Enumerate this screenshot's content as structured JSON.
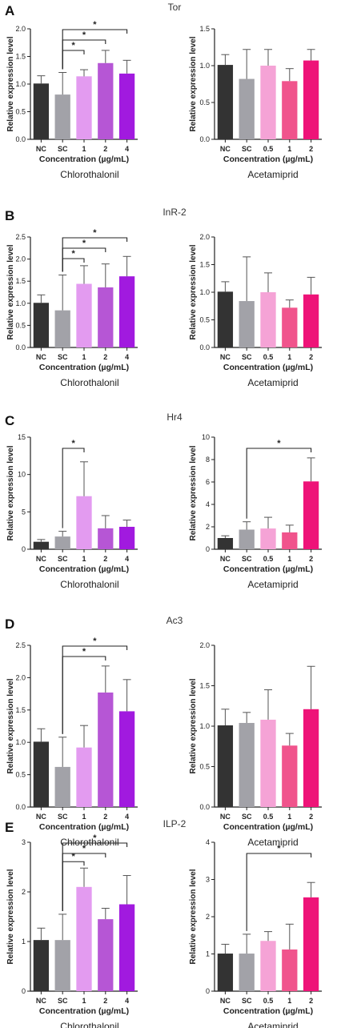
{
  "figure": {
    "panels": [
      {
        "letter": "A",
        "gene": "Tor",
        "charts": [
          {
            "type": "bar",
            "treatment": "Chlorothalonil",
            "xlabel": "Concentration (µg/mL)",
            "ylabel": "Relative expression level",
            "ylim": [
              0,
              2.0
            ],
            "yticks": [
              "0.0",
              "0.5",
              "1.0",
              "1.5",
              "2.0"
            ],
            "categories": [
              "NC",
              "SC",
              "1",
              "2",
              "4"
            ],
            "values": [
              1.01,
              0.81,
              1.14,
              1.38,
              1.19
            ],
            "errors": [
              0.14,
              0.4,
              0.12,
              0.23,
              0.24
            ],
            "colors": [
              "#333333",
              "#a2a2a8",
              "#e39bf0",
              "#b656d5",
              "#a11adf"
            ],
            "significance": [
              {
                "from": "SC",
                "to": "1",
                "label": "*"
              },
              {
                "from": "SC",
                "to": "2",
                "label": "*"
              },
              {
                "from": "SC",
                "to": "4",
                "label": "*"
              }
            ]
          },
          {
            "type": "bar",
            "treatment": "Acetamiprid",
            "xlabel": "Concentration (µg/mL)",
            "ylabel": "Relative expression level",
            "ylim": [
              0,
              1.5
            ],
            "yticks": [
              "0.0",
              "0.5",
              "1.0",
              "1.5"
            ],
            "categories": [
              "NC",
              "SC",
              "0.5",
              "1",
              "2"
            ],
            "values": [
              1.01,
              0.82,
              1.0,
              0.79,
              1.07
            ],
            "errors": [
              0.14,
              0.4,
              0.22,
              0.17,
              0.15
            ],
            "colors": [
              "#333333",
              "#a2a2a8",
              "#f5a3d6",
              "#f0548c",
              "#ee1378"
            ],
            "significance": []
          }
        ]
      },
      {
        "letter": "B",
        "gene": "InR-2",
        "charts": [
          {
            "type": "bar",
            "treatment": "Chlorothalonil",
            "xlabel": "Concentration (µg/mL)",
            "ylabel": "Relative expression level",
            "ylim": [
              0,
              2.5
            ],
            "yticks": [
              "0.0",
              "0.5",
              "1.0",
              "1.5",
              "2.0",
              "2.5"
            ],
            "categories": [
              "NC",
              "SC",
              "1",
              "2",
              "4"
            ],
            "values": [
              1.01,
              0.84,
              1.44,
              1.36,
              1.61
            ],
            "errors": [
              0.18,
              0.8,
              0.41,
              0.53,
              0.45
            ],
            "colors": [
              "#333333",
              "#a2a2a8",
              "#e39bf0",
              "#b656d5",
              "#a11adf"
            ],
            "significance": [
              {
                "from": "SC",
                "to": "1",
                "label": "*"
              },
              {
                "from": "SC",
                "to": "2",
                "label": "*"
              },
              {
                "from": "SC",
                "to": "4",
                "label": "*"
              }
            ]
          },
          {
            "type": "bar",
            "treatment": "Acetamiprid",
            "xlabel": "Concentration (µg/mL)",
            "ylabel": "Relative expression level",
            "ylim": [
              0,
              2.0
            ],
            "yticks": [
              "0.0",
              "0.5",
              "1.0",
              "1.5",
              "2.0"
            ],
            "categories": [
              "NC",
              "SC",
              "0.5",
              "1",
              "2"
            ],
            "values": [
              1.01,
              0.84,
              1.0,
              0.72,
              0.96
            ],
            "errors": [
              0.18,
              0.8,
              0.35,
              0.14,
              0.31
            ],
            "colors": [
              "#333333",
              "#a2a2a8",
              "#f5a3d6",
              "#f0548c",
              "#ee1378"
            ],
            "significance": []
          }
        ]
      },
      {
        "letter": "C",
        "gene": "Hr4",
        "charts": [
          {
            "type": "bar",
            "treatment": "Chlorothalonil",
            "xlabel": "Concentration (µg/mL)",
            "ylabel": "Relative expression level",
            "ylim": [
              0,
              15
            ],
            "yticks": [
              "0",
              "5",
              "10",
              "15"
            ],
            "categories": [
              "NC",
              "SC",
              "1",
              "2",
              "4"
            ],
            "values": [
              1.0,
              1.7,
              7.1,
              2.8,
              3.0
            ],
            "errors": [
              0.3,
              0.7,
              4.6,
              1.7,
              0.9
            ],
            "colors": [
              "#333333",
              "#a2a2a8",
              "#e39bf0",
              "#b656d5",
              "#a11adf"
            ],
            "significance": [
              {
                "from": "SC",
                "to": "1",
                "label": "*"
              }
            ]
          },
          {
            "type": "bar",
            "treatment": "Acetamiprid",
            "xlabel": "Concentration (µg/mL)",
            "ylabel": "Relative expression level",
            "ylim": [
              0,
              10
            ],
            "yticks": [
              "0",
              "2",
              "4",
              "6",
              "8",
              "10"
            ],
            "categories": [
              "NC",
              "SC",
              "0.5",
              "1",
              "2"
            ],
            "values": [
              1.0,
              1.75,
              1.85,
              1.5,
              6.05
            ],
            "errors": [
              0.2,
              0.7,
              1.0,
              0.65,
              2.1
            ],
            "colors": [
              "#333333",
              "#a2a2a8",
              "#f5a3d6",
              "#f0548c",
              "#ee1378"
            ],
            "significance": [
              {
                "from": "SC",
                "to": "2",
                "label": "*"
              }
            ]
          }
        ]
      },
      {
        "letter": "D",
        "gene": "Ac3",
        "charts": [
          {
            "type": "bar",
            "treatment": "Chlorothalonil",
            "xlabel": "Concentration (µg/mL)",
            "ylabel": "Relative expression level",
            "ylim": [
              0,
              2.5
            ],
            "yticks": [
              "0.0",
              "0.5",
              "1.0",
              "1.5",
              "2.0",
              "2.5"
            ],
            "categories": [
              "NC",
              "SC",
              "1",
              "2",
              "4"
            ],
            "values": [
              1.01,
              0.62,
              0.92,
              1.77,
              1.48
            ],
            "errors": [
              0.2,
              0.46,
              0.34,
              0.41,
              0.49
            ],
            "colors": [
              "#333333",
              "#a2a2a8",
              "#e39bf0",
              "#b656d5",
              "#a11adf"
            ],
            "significance": [
              {
                "from": "SC",
                "to": "2",
                "label": "*"
              },
              {
                "from": "SC",
                "to": "4",
                "label": "*"
              }
            ]
          },
          {
            "type": "bar",
            "treatment": "Acetamiprid",
            "xlabel": "Concentration (µg/mL)",
            "ylabel": "Relative expression level",
            "ylim": [
              0,
              2.0
            ],
            "yticks": [
              "0.0",
              "0.5",
              "1.0",
              "1.5",
              "2.0"
            ],
            "categories": [
              "NC",
              "SC",
              "0.5",
              "1",
              "2"
            ],
            "values": [
              1.01,
              1.04,
              1.08,
              0.76,
              1.21
            ],
            "errors": [
              0.2,
              0.13,
              0.37,
              0.15,
              0.53
            ],
            "colors": [
              "#333333",
              "#a2a2a8",
              "#f5a3d6",
              "#f0548c",
              "#ee1378"
            ],
            "significance": []
          }
        ]
      },
      {
        "letter": "E",
        "gene": "ILP-2",
        "charts": [
          {
            "type": "bar",
            "treatment": "Chlorothalonil",
            "xlabel": "Concentration (µg/mL)",
            "ylabel": "Relative expression level",
            "ylim": [
              0,
              3
            ],
            "yticks": [
              "0",
              "1",
              "2",
              "3"
            ],
            "categories": [
              "NC",
              "SC",
              "1",
              "2",
              "4"
            ],
            "values": [
              1.03,
              1.03,
              2.1,
              1.45,
              1.75
            ],
            "errors": [
              0.24,
              0.52,
              0.38,
              0.22,
              0.58
            ],
            "colors": [
              "#333333",
              "#a2a2a8",
              "#e39bf0",
              "#b656d5",
              "#a11adf"
            ],
            "significance": [
              {
                "from": "SC",
                "to": "1",
                "label": "*"
              },
              {
                "from": "SC",
                "to": "2",
                "label": "*"
              },
              {
                "from": "SC",
                "to": "4",
                "label": "*"
              }
            ]
          },
          {
            "type": "bar",
            "treatment": "Acetamiprid",
            "xlabel": "Concentration (µg/mL)",
            "ylabel": "Relative expression level",
            "ylim": [
              0,
              4
            ],
            "yticks": [
              "0",
              "1",
              "2",
              "3",
              "4"
            ],
            "categories": [
              "NC",
              "SC",
              "0.5",
              "1",
              "2"
            ],
            "values": [
              1.01,
              1.01,
              1.35,
              1.12,
              2.52
            ],
            "errors": [
              0.25,
              0.52,
              0.25,
              0.68,
              0.4
            ],
            "colors": [
              "#333333",
              "#a2a2a8",
              "#f5a3d6",
              "#f0548c",
              "#ee1378"
            ],
            "significance": [
              {
                "from": "SC",
                "to": "2",
                "label": "*"
              }
            ]
          }
        ]
      }
    ]
  }
}
